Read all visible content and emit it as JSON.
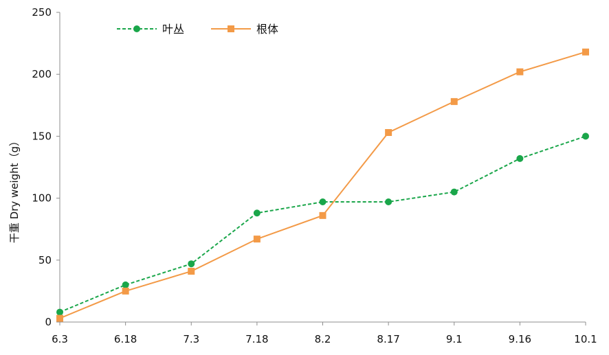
{
  "chart_data": {
    "type": "line",
    "title": "",
    "xlabel": "",
    "ylabel": "干重 Dry weight（g）",
    "categories": [
      "6.3",
      "6.18",
      "7.3",
      "7.18",
      "8.2",
      "8.17",
      "9.1",
      "9.16",
      "10.1"
    ],
    "ylim": [
      0,
      250
    ],
    "yticks": [
      0,
      50,
      100,
      150,
      200,
      250
    ],
    "grid": false,
    "legend_position": "top-left",
    "series": [
      {
        "name": "叶丛",
        "values": [
          8,
          30,
          47,
          88,
          97,
          97,
          105,
          132,
          150
        ],
        "color": "#1aa64a",
        "line_style": "dashed",
        "marker": "circle"
      },
      {
        "name": "根体",
        "values": [
          3,
          25,
          41,
          67,
          86,
          153,
          178,
          202,
          218
        ],
        "color": "#f39a47",
        "line_style": "solid",
        "marker": "square"
      }
    ]
  }
}
